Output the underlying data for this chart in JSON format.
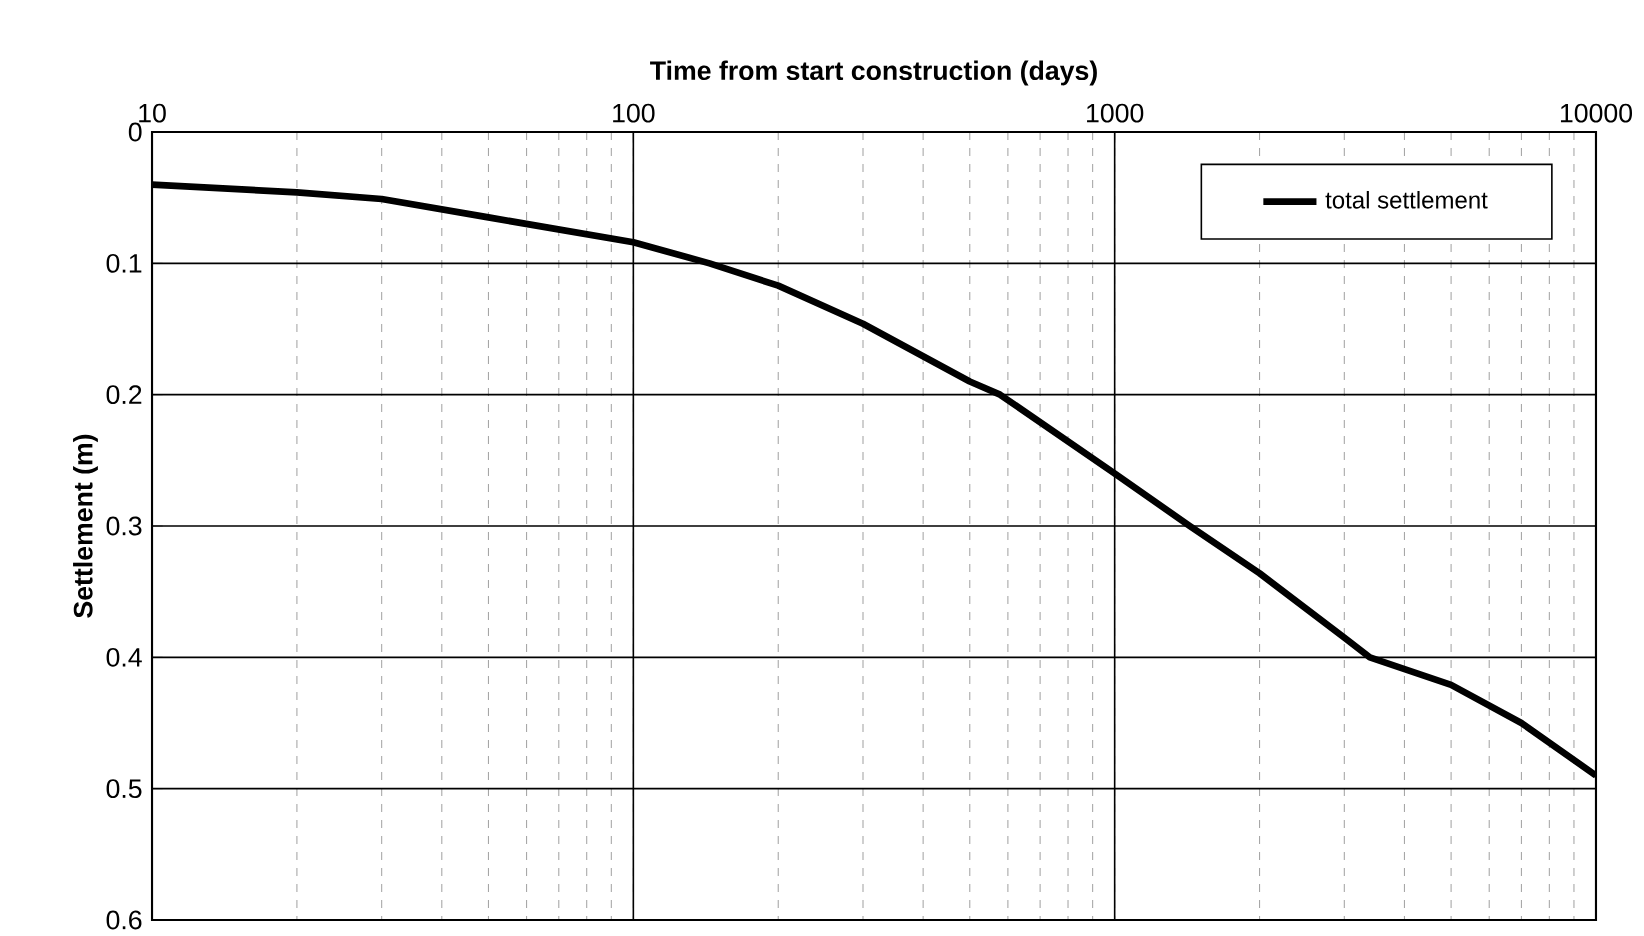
{
  "chart_data": {
    "type": "line",
    "xlabel": "Time from start construction (days)",
    "ylabel": "Settlement (m)",
    "x": [
      10,
      20,
      30,
      50,
      100,
      144,
      200,
      300,
      500,
      578,
      1000,
      1432,
      2000,
      3000,
      3390,
      5000,
      7000,
      10000
    ],
    "series": [
      {
        "name": "total settlement",
        "color": "#000000",
        "values": [
          0.04,
          0.046,
          0.051,
          0.065,
          0.084,
          0.1,
          0.117,
          0.146,
          0.19,
          0.2,
          0.26,
          0.3,
          0.336,
          0.385,
          0.4,
          0.421,
          0.45,
          0.49
        ]
      }
    ],
    "xlim": [
      10,
      10000
    ],
    "xticks": [
      10,
      100,
      1000,
      10000
    ],
    "ylim": [
      0.6,
      0
    ],
    "yticks": [
      0,
      0.1,
      0.2,
      0.3,
      0.4,
      0.5,
      0.6
    ],
    "log": "x",
    "grid": true,
    "legend": "top right",
    "marker": "none",
    "line_style": "solid"
  }
}
